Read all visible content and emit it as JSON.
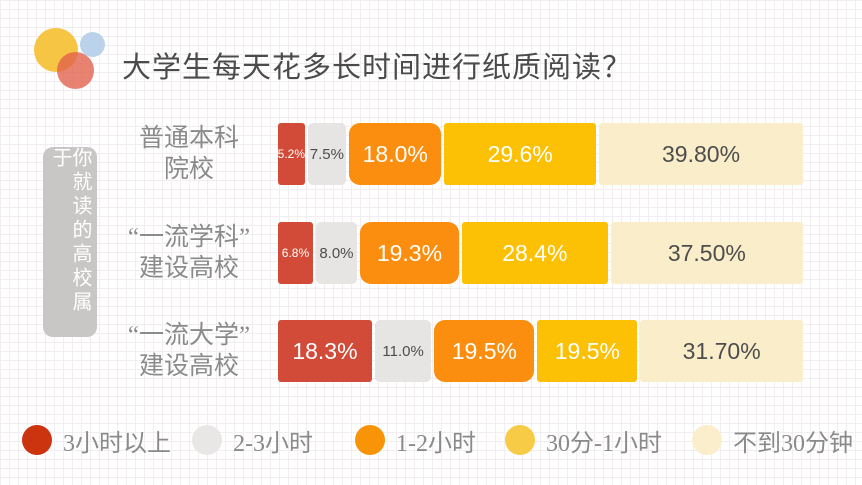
{
  "title": "大学生每天花多长时间进行纸质阅读？",
  "sidebar_label": "你就读的高校属于",
  "logo_colors": {
    "yellow": "#F7C544",
    "blue": "#AECBE7",
    "red": "#E2604A"
  },
  "sidebar_bg": "#C9C7C5",
  "categories": [
    {
      "label": "3小时以上",
      "color": "#D24B38",
      "dot_color": "#CC330F",
      "text_color": "#ffffff"
    },
    {
      "label": "2-3小时",
      "color": "#E7E5E3",
      "dot_color": "#E9E7E5",
      "text_color": "#4d4d4d"
    },
    {
      "label": "1-2小时",
      "color": "#FB8E0E",
      "dot_color": "#FA9407",
      "text_color": "#ffffff"
    },
    {
      "label": "30分-1小时",
      "color": "#FCC105",
      "dot_color": "#F8CB46",
      "text_color": "#ffffff"
    },
    {
      "label": "不到30分钟",
      "color": "#FAEDCA",
      "dot_color": "#FBEECD",
      "text_color": "#4d4d4d"
    }
  ],
  "rows": [
    {
      "label_line1": "普通本科",
      "label_line2": "院校",
      "values": [
        5.2,
        7.5,
        18.0,
        29.6,
        39.8
      ],
      "value_labels": [
        "5.2%",
        "7.5%",
        "18.0%",
        "29.6%",
        "39.80%"
      ]
    },
    {
      "label_line1": "“一流学科”",
      "label_line2": "建设高校",
      "values": [
        6.8,
        8.0,
        19.3,
        28.4,
        37.5
      ],
      "value_labels": [
        "6.8%",
        "8.0%",
        "19.3%",
        "28.4%",
        "37.50%"
      ]
    },
    {
      "label_line1": "“一流大学”",
      "label_line2": "建设高校",
      "values": [
        18.3,
        11.0,
        19.5,
        19.5,
        31.7
      ],
      "value_labels": [
        "18.3%",
        "11.0%",
        "19.5%",
        "19.5%",
        "31.70%"
      ]
    }
  ],
  "chart_data": {
    "type": "bar",
    "variant": "horizontal_stacked_100pct",
    "title": "大学生每天花多长时间进行纸质阅读？",
    "group_axis_label": "你就读的高校属于",
    "categories": [
      "普通本科院校",
      "“一流学科”建设高校",
      "“一流大学”建设高校"
    ],
    "series": [
      {
        "name": "3小时以上",
        "values": [
          5.2,
          6.8,
          18.3
        ]
      },
      {
        "name": "2-3小时",
        "values": [
          7.5,
          8.0,
          11.0
        ]
      },
      {
        "name": "1-2小时",
        "values": [
          18.0,
          19.3,
          19.5
        ]
      },
      {
        "name": "30分-1小时",
        "values": [
          29.6,
          28.4,
          19.5
        ]
      },
      {
        "name": "不到30分钟",
        "values": [
          39.8,
          37.5,
          31.7
        ]
      }
    ],
    "unit": "%",
    "xlim": [
      0,
      100
    ],
    "legend_position": "bottom",
    "grid": "graph-paper background",
    "value_labels_shown": true
  }
}
